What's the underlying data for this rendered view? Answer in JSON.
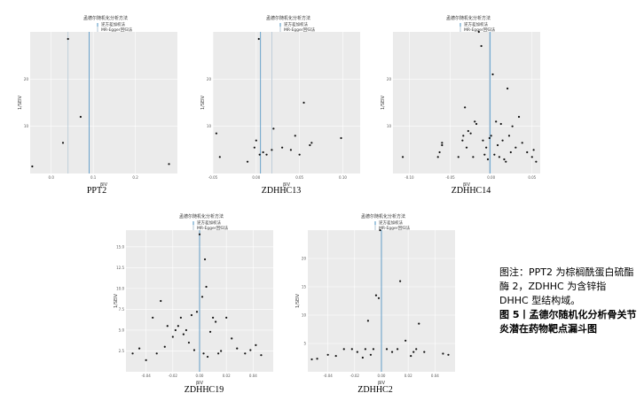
{
  "legend": {
    "title": "孟德尔随机化分析方法",
    "ivw": "逆方差加权法",
    "egger": "MR-Egger回归法"
  },
  "axis": {
    "xlabel": "βIV",
    "ylabel": "1/SEIV"
  },
  "colors": {
    "ivw": "#4a90c2",
    "egger": "#b5c7d6",
    "point": "#111111",
    "panel_bg": "#ebebeb",
    "grid": "#ffffff"
  },
  "caption": {
    "note": "图注：PPT2 为棕榈酰蛋白硫酯酶 2，ZDHHC 为含锌指 DHHC 型结构域。",
    "figure": "图 5丨孟德尔随机化分析骨关节炎潜在药物靶点漏斗图"
  },
  "chart_data": [
    {
      "type": "scatter",
      "label": "PPT2",
      "xlim": [
        -0.05,
        0.3
      ],
      "ylim": [
        0,
        30
      ],
      "xticks": [
        0.0,
        0.1,
        0.2
      ],
      "xtick_labels": [
        "0.0",
        "0.1",
        "0.2"
      ],
      "yticks": [
        10,
        20
      ],
      "ytick_labels": [
        "10",
        "20"
      ],
      "ivw": 0.09,
      "egger": 0.04,
      "points": [
        [
          -0.045,
          1.5
        ],
        [
          0.028,
          6.5
        ],
        [
          0.04,
          28.5
        ],
        [
          0.07,
          12
        ],
        [
          0.28,
          2
        ]
      ]
    },
    {
      "type": "scatter",
      "label": "ZDHHC13",
      "xlim": [
        -0.05,
        0.12
      ],
      "ylim": [
        0,
        30
      ],
      "xticks": [
        -0.05,
        0.0,
        0.05,
        0.1
      ],
      "xtick_labels": [
        "-0.05",
        "0.00",
        "0.05",
        "0.10"
      ],
      "yticks": [
        10,
        20
      ],
      "ytick_labels": [
        "10",
        "20"
      ],
      "ivw": 0.005,
      "egger": 0.018,
      "points": [
        [
          -0.046,
          8.5
        ],
        [
          -0.042,
          3.5
        ],
        [
          -0.01,
          2.5
        ],
        [
          -0.002,
          5.5
        ],
        [
          0.0,
          7
        ],
        [
          0.003,
          28.5
        ],
        [
          0.004,
          4
        ],
        [
          0.008,
          4.5
        ],
        [
          0.012,
          4
        ],
        [
          0.018,
          5
        ],
        [
          0.02,
          9.5
        ],
        [
          0.03,
          5.5
        ],
        [
          0.04,
          5
        ],
        [
          0.045,
          8
        ],
        [
          0.05,
          4
        ],
        [
          0.055,
          15
        ],
        [
          0.062,
          6
        ],
        [
          0.064,
          6.5
        ],
        [
          0.098,
          7.5
        ]
      ]
    },
    {
      "type": "scatter",
      "label": "ZDHHC14",
      "xlim": [
        -0.12,
        0.06
      ],
      "ylim": [
        0,
        30
      ],
      "xticks": [
        -0.1,
        -0.05,
        0.0,
        0.05
      ],
      "xtick_labels": [
        "-0.10",
        "-0.05",
        "0.00",
        "0.05"
      ],
      "yticks": [
        10,
        20
      ],
      "ytick_labels": [
        "10",
        "20"
      ],
      "ivw": -0.001,
      "egger": -0.002,
      "points": [
        [
          -0.108,
          3.5
        ],
        [
          -0.065,
          3.5
        ],
        [
          -0.063,
          4.5
        ],
        [
          -0.06,
          6
        ],
        [
          -0.06,
          6.5
        ],
        [
          -0.04,
          3.5
        ],
        [
          -0.035,
          7
        ],
        [
          -0.034,
          8
        ],
        [
          -0.032,
          14
        ],
        [
          -0.03,
          5.5
        ],
        [
          -0.028,
          9
        ],
        [
          -0.025,
          8.5
        ],
        [
          -0.022,
          3.5
        ],
        [
          -0.02,
          11
        ],
        [
          -0.018,
          10.5
        ],
        [
          -0.015,
          30
        ],
        [
          -0.012,
          27
        ],
        [
          -0.01,
          7
        ],
        [
          -0.008,
          4
        ],
        [
          -0.006,
          5.5
        ],
        [
          -0.004,
          3
        ],
        [
          -0.002,
          7.5
        ],
        [
          0.0,
          8
        ],
        [
          0.002,
          21
        ],
        [
          0.004,
          4
        ],
        [
          0.006,
          11
        ],
        [
          0.008,
          6
        ],
        [
          0.01,
          3.5
        ],
        [
          0.012,
          10.5
        ],
        [
          0.014,
          7
        ],
        [
          0.016,
          3
        ],
        [
          0.018,
          2.5
        ],
        [
          0.02,
          18
        ],
        [
          0.022,
          8
        ],
        [
          0.024,
          4.5
        ],
        [
          0.026,
          10
        ],
        [
          0.03,
          5.5
        ],
        [
          0.034,
          12
        ],
        [
          0.038,
          6.5
        ],
        [
          0.044,
          4.5
        ],
        [
          0.05,
          3.5
        ],
        [
          0.052,
          5
        ],
        [
          0.055,
          2.5
        ]
      ]
    },
    {
      "type": "scatter",
      "label": "ZDHHC19",
      "xlim": [
        -0.055,
        0.055
      ],
      "ylim": [
        0,
        17
      ],
      "xticks": [
        -0.04,
        -0.02,
        0.0,
        0.02,
        0.04
      ],
      "xtick_labels": [
        "-0.04",
        "-0.02",
        "0.00",
        "0.02",
        "0.04"
      ],
      "yticks": [
        2.5,
        5.0,
        7.5,
        10.0,
        12.5,
        15.0
      ],
      "ytick_labels": [
        "2.5",
        "5.0",
        "7.5",
        "10.0",
        "12.5",
        "15.0"
      ],
      "ivw": 0.0,
      "egger": 0.0,
      "points": [
        [
          -0.05,
          2.2
        ],
        [
          -0.045,
          2.8
        ],
        [
          -0.04,
          1.4
        ],
        [
          -0.035,
          6.5
        ],
        [
          -0.032,
          2.2
        ],
        [
          -0.029,
          8.5
        ],
        [
          -0.026,
          3
        ],
        [
          -0.024,
          5.5
        ],
        [
          -0.02,
          4.2
        ],
        [
          -0.018,
          5
        ],
        [
          -0.016,
          5.5
        ],
        [
          -0.014,
          6.5
        ],
        [
          -0.012,
          4.5
        ],
        [
          -0.01,
          5
        ],
        [
          -0.008,
          3.5
        ],
        [
          -0.006,
          6.8
        ],
        [
          -0.004,
          2.6
        ],
        [
          -0.002,
          7.2
        ],
        [
          0.0,
          16.5
        ],
        [
          0.002,
          9
        ],
        [
          0.003,
          2.2
        ],
        [
          0.004,
          13.5
        ],
        [
          0.005,
          10.2
        ],
        [
          0.006,
          1.8
        ],
        [
          0.008,
          4.8
        ],
        [
          0.01,
          6.5
        ],
        [
          0.012,
          6
        ],
        [
          0.014,
          2.2
        ],
        [
          0.016,
          2.5
        ],
        [
          0.02,
          6.5
        ],
        [
          0.024,
          4
        ],
        [
          0.028,
          2.8
        ],
        [
          0.034,
          2.2
        ],
        [
          0.038,
          2.6
        ],
        [
          0.042,
          3.2
        ],
        [
          0.046,
          2
        ]
      ]
    },
    {
      "type": "scatter",
      "label": "ZDHHC2",
      "xlim": [
        -0.055,
        0.055
      ],
      "ylim": [
        0,
        25
      ],
      "xticks": [
        -0.04,
        -0.02,
        0.0,
        0.02,
        0.04
      ],
      "xtick_labels": [
        "-0.04",
        "-0.02",
        "0.00",
        "0.02",
        "0.04"
      ],
      "yticks": [
        5,
        10,
        15,
        20
      ],
      "ytick_labels": [
        "5",
        "10",
        "15",
        "20"
      ],
      "ivw": 0.0,
      "egger": 0.0,
      "points": [
        [
          -0.052,
          2.2
        ],
        [
          -0.048,
          2.3
        ],
        [
          -0.04,
          3
        ],
        [
          -0.034,
          2.8
        ],
        [
          -0.028,
          4
        ],
        [
          -0.022,
          4
        ],
        [
          -0.018,
          3.5
        ],
        [
          -0.014,
          2.5
        ],
        [
          -0.012,
          4
        ],
        [
          -0.01,
          9
        ],
        [
          -0.008,
          3
        ],
        [
          -0.006,
          4
        ],
        [
          -0.004,
          13.5
        ],
        [
          -0.002,
          13
        ],
        [
          -0.001,
          25
        ],
        [
          0.004,
          4
        ],
        [
          0.008,
          3.5
        ],
        [
          0.012,
          4
        ],
        [
          0.014,
          16
        ],
        [
          0.018,
          5.5
        ],
        [
          0.022,
          2.8
        ],
        [
          0.024,
          3.5
        ],
        [
          0.026,
          4
        ],
        [
          0.028,
          8.5
        ],
        [
          0.032,
          3.5
        ],
        [
          0.046,
          3.2
        ],
        [
          0.05,
          3
        ]
      ]
    }
  ]
}
